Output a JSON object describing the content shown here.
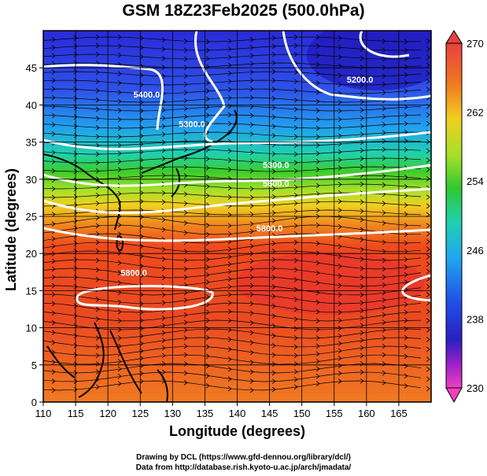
{
  "title": "GSM 18Z23Feb2025 (500.0hPa)",
  "xlabel": "Longitude (degrees)",
  "ylabel": "Latitude  (degrees)",
  "credit_line1": "Drawing by DCL (https://www.gfd-dennou.org/library/dcl/)",
  "credit_line2": "Data from http://database.rish.kyoto-u.ac.jp/arch/jmadata/",
  "chart_data": {
    "type": "heatmap",
    "xlim": [
      110,
      170
    ],
    "ylim": [
      0,
      50
    ],
    "x_ticks": [
      "110",
      "115",
      "120",
      "125",
      "130",
      "135",
      "140",
      "145",
      "150",
      "155",
      "160",
      "165"
    ],
    "y_ticks": [
      "0",
      "5",
      "10",
      "15",
      "20",
      "25",
      "30",
      "35",
      "40",
      "45"
    ],
    "colorbar": {
      "min": 230,
      "max": 270,
      "labels": [
        "270",
        "262",
        "254",
        "246",
        "238",
        "230"
      ]
    },
    "contour_labels": [
      {
        "text": "5400.0",
        "lon": 126,
        "lat": 41
      },
      {
        "text": "5200.0",
        "lon": 159,
        "lat": 43
      },
      {
        "text": "5300.0",
        "lon": 133,
        "lat": 37
      },
      {
        "text": "5300.0",
        "lon": 146,
        "lat": 31.5
      },
      {
        "text": "5600.0",
        "lon": 146,
        "lat": 29
      },
      {
        "text": "5800.0",
        "lon": 145,
        "lat": 23
      },
      {
        "text": "5800.0",
        "lon": 124,
        "lat": 17
      }
    ]
  }
}
